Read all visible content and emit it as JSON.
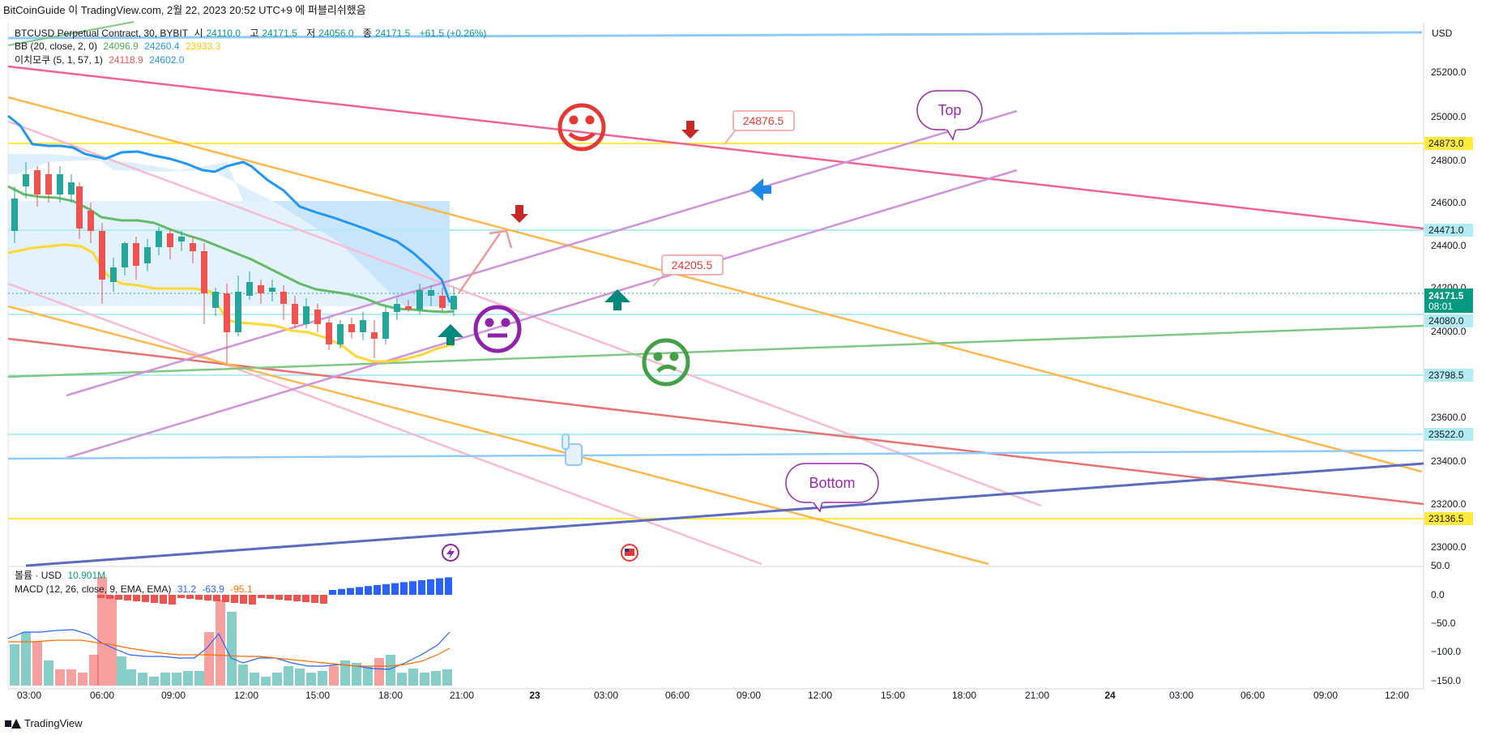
{
  "header": {
    "publish_info": "BitCoinGuide 이 TradingView.com, 2월 22, 2023 20:52 UTC+9 에 퍼블리쉬했음"
  },
  "legend": {
    "symbol": "BTCUSD Perpetual Contract, 30, BYBIT",
    "open_label": "시",
    "open": "24110.0",
    "high_label": "고",
    "high": "24171.5",
    "low_label": "저",
    "low": "24056.0",
    "close_label": "종",
    "close": "24171.5",
    "change": "+61.5 (+0.26%)",
    "bb_label": "BB (20, close, 2, 0)",
    "bb_basis": "24096.9",
    "bb_upper": "24260.4",
    "bb_lower": "23933.3",
    "ichimoku_label": "이치모쿠 (5, 1, 57, 1)",
    "ichimoku_a": "24118.9",
    "ichimoku_b": "24602.0",
    "volume_label": "볼륨 · USD",
    "volume": "10.901M",
    "macd_label": "MACD (12, 26, close, 9, EMA, EMA)",
    "macd_hist": "31.2",
    "macd_line": "-63.9",
    "macd_signal": "-95.1"
  },
  "price_axis": {
    "currency": "USD",
    "ticks": [
      "25200.0",
      "25000.0",
      "24800.0",
      "24600.0",
      "24400.0",
      "24200.0",
      "24000.0",
      "23600.0",
      "23400.0",
      "23200.0",
      "23000.0"
    ],
    "badges": {
      "b24873": "24873.0",
      "b24471": "24471.0",
      "current_price": "24171.5",
      "countdown": "08:01",
      "b24080": "24080.0",
      "b23798": "23798.5",
      "b23522": "23522.0",
      "b23136": "23136.5"
    }
  },
  "macd_axis": {
    "ticks": [
      "50.0",
      "0.0",
      "−50.0",
      "−100.0",
      "−150.0"
    ]
  },
  "time_axis": {
    "ticks": [
      "03:00",
      "06:00",
      "09:00",
      "12:00",
      "15:00",
      "18:00",
      "21:00",
      "23",
      "03:00",
      "06:00",
      "09:00",
      "12:00",
      "15:00",
      "18:00",
      "21:00",
      "24",
      "03:00",
      "06:00",
      "09:00",
      "12:00"
    ]
  },
  "annotations": {
    "top_bubble": "Top",
    "bottom_bubble": "Bottom",
    "callout_1": "24876.5",
    "callout_2": "24205.5"
  },
  "footer": {
    "brand": "TradingView"
  },
  "colors": {
    "up": "#26a69a",
    "down": "#ef5350",
    "bb_upper": "#2196f3",
    "bb_basis": "#4caf50",
    "bb_lower": "#ffeb3b"
  }
}
